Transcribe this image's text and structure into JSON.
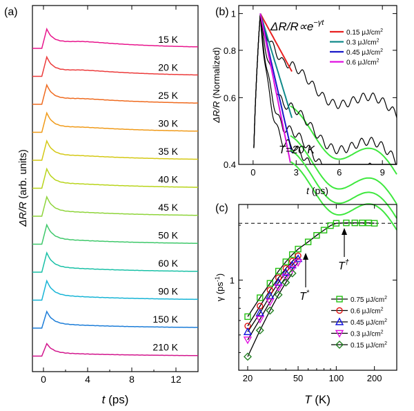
{
  "chart_data": [
    {
      "type": "line",
      "panel_label": "(a)",
      "xlabel_italic": "t",
      "xlabel_unit": "(ps)",
      "ylabel_italic": "ΔR/R",
      "ylabel_unit": "(arb. units)",
      "xlim": [
        -1,
        14
      ],
      "xticks": [
        0,
        4,
        8,
        12
      ],
      "xtick_labels": [
        "0",
        "4",
        "8",
        "12"
      ],
      "series": [
        {
          "name": "15 K",
          "color": "#e8148c",
          "peak": 28,
          "bump": 6.0
        },
        {
          "name": "20 K",
          "color": "#ec3a3a",
          "peak": 28,
          "bump": 5.0
        },
        {
          "name": "25 K",
          "color": "#ef6a1e",
          "peak": 28,
          "bump": 4.0
        },
        {
          "name": "30 K",
          "color": "#f09a18",
          "peak": 28,
          "bump": 3.0
        },
        {
          "name": "35 K",
          "color": "#d4c814",
          "peak": 28,
          "bump": 2.0
        },
        {
          "name": "40 K",
          "color": "#b8d41a",
          "peak": 28,
          "bump": 1.5
        },
        {
          "name": "45 K",
          "color": "#8ed43a",
          "peak": 28,
          "bump": 1.0
        },
        {
          "name": "50 K",
          "color": "#3ec86a",
          "peak": 28,
          "bump": 0.6
        },
        {
          "name": "60 K",
          "color": "#18c0a6",
          "peak": 28,
          "bump": 0.3
        },
        {
          "name": "90 K",
          "color": "#16b4d6",
          "peak": 28,
          "bump": 0.0
        },
        {
          "name": "150 K",
          "color": "#1a7cd8",
          "peak": 24,
          "bump": 0.0
        },
        {
          "name": "210 K",
          "color": "#d2148c",
          "peak": 18,
          "bump": 0.0
        }
      ]
    },
    {
      "type": "line",
      "panel_label": "(b)",
      "xlabel_italic": "t",
      "xlabel_unit": "(ps)",
      "ylabel_italic": "ΔR/R",
      "ylabel_unit": "(Normalized)",
      "yscale": "log",
      "xlim": [
        -1,
        10
      ],
      "ylim": [
        0.4,
        1.05
      ],
      "xticks": [
        0,
        3,
        6,
        9
      ],
      "xtick_labels": [
        "0",
        "3",
        "6",
        "9"
      ],
      "yticks": [
        0.4,
        0.6,
        0.8,
        1.0
      ],
      "ytick_labels": [
        "0.4",
        "0.6",
        "0.8",
        "1"
      ],
      "formula_main": "ΔR/R∝e",
      "formula_exp": "−γt",
      "temperature_label": "T=20 K",
      "series": [
        {
          "name": "0.15 μJ/cm²",
          "label_main": "0.15 μJ/cm",
          "label_sup": "2",
          "color": "#e82020",
          "gamma": 0.1,
          "tail": 0.575
        },
        {
          "name": "0.3 μJ/cm²",
          "label_main": "0.3  μJ/cm",
          "label_sup": "2",
          "color": "#108a8a",
          "gamma": 0.18,
          "tail": 0.48
        },
        {
          "name": "0.45 μJ/cm²",
          "label_main": "0.45 μJ/cm",
          "label_sup": "2",
          "color": "#1818c8",
          "gamma": 0.24,
          "tail": 0.44
        },
        {
          "name": "0.6 μJ/cm²",
          "label_main": "0.6  μJ/cm",
          "label_sup": "2",
          "color": "#e010e0",
          "gamma": 0.27,
          "tail": 0.41
        }
      ]
    },
    {
      "type": "scatter",
      "panel_label": "(c)",
      "xscale": "log",
      "yscale": "log",
      "xlabel_italic": "T",
      "xlabel_unit": "(K)",
      "ylabel_main": "γ (ps",
      "ylabel_sup": "-1",
      "ylabel_end": ")",
      "xlim": [
        17,
        300
      ],
      "ylim": [
        0.32,
        2.6
      ],
      "xticks": [
        20,
        50,
        100,
        200
      ],
      "xtick_labels": [
        "20",
        "50",
        "100",
        "200"
      ],
      "yticks": [
        1
      ],
      "ytick_labels": [
        "1"
      ],
      "dashed_level": 2.05,
      "annotation_tstar": "T",
      "annotation_tstar_sup": "*",
      "annotation_tdagger": "T",
      "annotation_tdagger_sup": "†",
      "series": [
        {
          "name": "0.75 μJ/cm²",
          "label_main": "0.75  μJ/cm",
          "label_sup": "2",
          "color": "#22c010",
          "marker": "square",
          "x": [
            20,
            25,
            30,
            35,
            40,
            45,
            50,
            60,
            70,
            80,
            90,
            100,
            120,
            140,
            160,
            180,
            200
          ],
          "y": [
            0.63,
            0.8,
            0.96,
            1.12,
            1.26,
            1.38,
            1.48,
            1.62,
            1.76,
            1.88,
            1.99,
            2.05,
            2.06,
            2.06,
            2.06,
            2.06,
            2.05
          ]
        },
        {
          "name": "0.6 μJ/cm²",
          "label_main": "0.6    μJ/cm",
          "label_sup": "2",
          "color": "#e01010",
          "marker": "circle",
          "x": [
            20,
            25,
            30,
            35,
            40,
            45,
            50
          ],
          "y": [
            0.56,
            0.72,
            0.88,
            1.03,
            1.16,
            1.27,
            1.36
          ]
        },
        {
          "name": "0.45 μJ/cm²",
          "label_main": "0.45  μJ/cm",
          "label_sup": "2",
          "color": "#1010e0",
          "marker": "triangle-up",
          "x": [
            20,
            25,
            30,
            35,
            40,
            45,
            50
          ],
          "y": [
            0.52,
            0.66,
            0.82,
            0.97,
            1.1,
            1.21,
            1.31
          ]
        },
        {
          "name": "0.3 μJ/cm²",
          "label_main": "0.3    μJ/cm",
          "label_sup": "2",
          "color": "#e010e0",
          "marker": "triangle-down",
          "x": [
            20,
            25,
            30,
            35,
            40,
            45,
            50
          ],
          "y": [
            0.47,
            0.61,
            0.76,
            0.91,
            1.04,
            1.15,
            1.25
          ]
        },
        {
          "name": "0.15 μJ/cm²",
          "label_main": "0.15  μJ/cm",
          "label_sup": "2",
          "color": "#208020",
          "marker": "diamond",
          "x": [
            20,
            25,
            30,
            35,
            40,
            45
          ],
          "y": [
            0.38,
            0.53,
            0.68,
            0.83,
            0.97,
            1.09
          ]
        }
      ]
    }
  ]
}
